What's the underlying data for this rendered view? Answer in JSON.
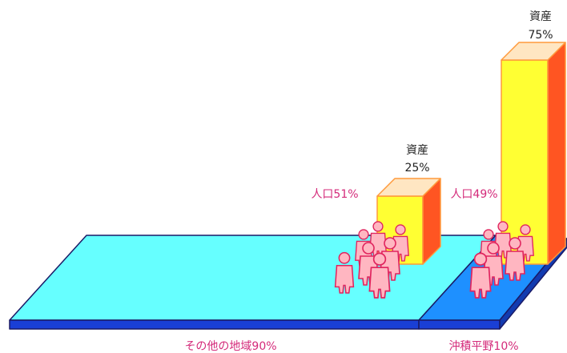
{
  "chart_data": {
    "type": "bar",
    "title": "",
    "colors": {
      "plate_other_top": "#66ffff",
      "plate_okinawa_top": "#1e90ff",
      "plate_edge": "#1a3fd6",
      "bar_front": "#ffff33",
      "bar_side": "#ff5522",
      "bar_top": "#ffe6c2",
      "person_fill": "#ffb6c1",
      "person_stroke": "#e0245e"
    },
    "regions": [
      {
        "name": "その他の地域",
        "area_pct": 90,
        "label": "その他の地域90%",
        "asset": {
          "label": "資産",
          "value": 25,
          "value_label": "25%"
        },
        "population": {
          "label": "人口51%",
          "value": 51
        }
      },
      {
        "name": "沖積平野",
        "area_pct": 10,
        "label": "沖積平野10%",
        "asset": {
          "label": "資産",
          "value": 75,
          "value_label": "75%"
        },
        "population": {
          "label": "人口49%",
          "value": 49
        }
      }
    ]
  }
}
